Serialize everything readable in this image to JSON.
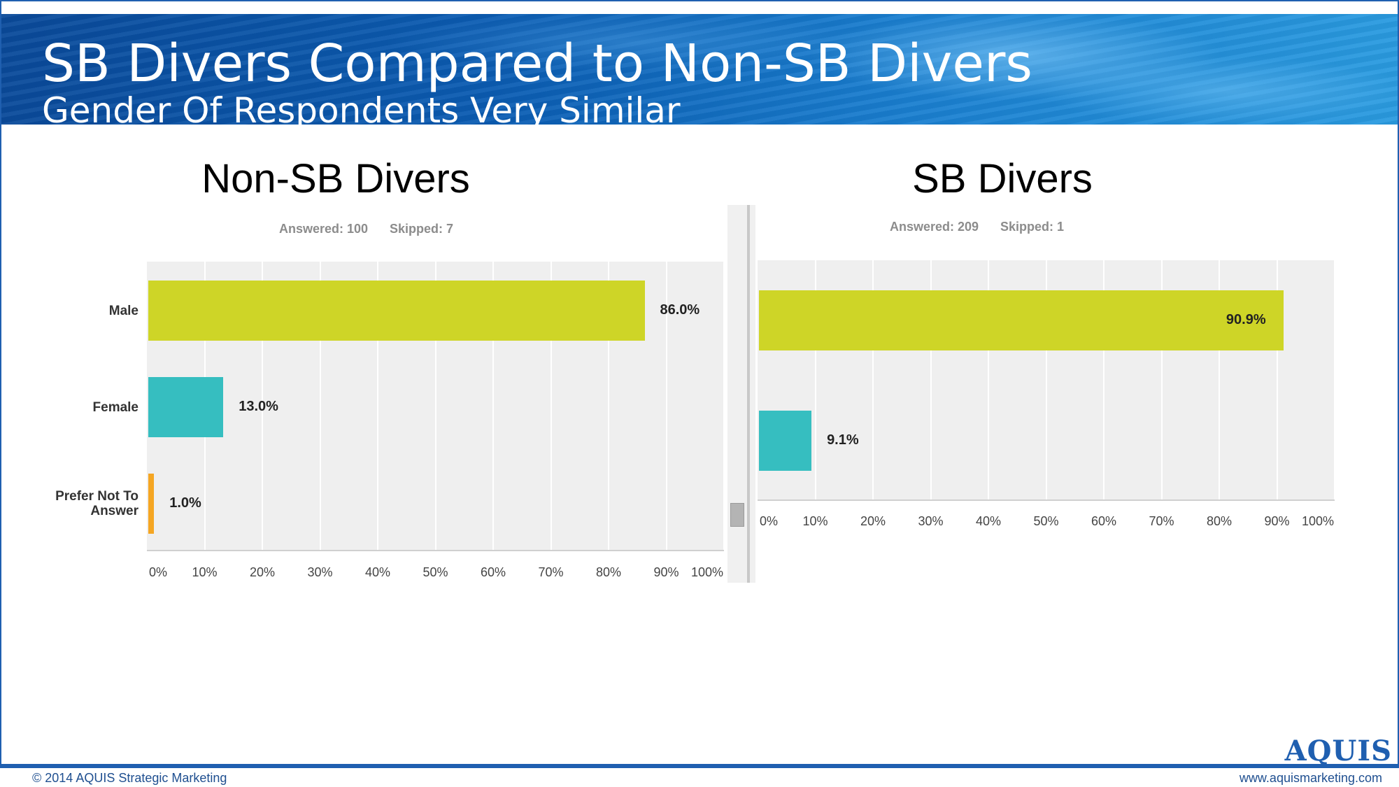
{
  "banner": {
    "title": "SB Divers Compared to Non-SB Divers",
    "subtitle": "Gender Of Respondents Very Similar"
  },
  "chart_data": [
    {
      "type": "bar",
      "orientation": "horizontal",
      "title": "Non-SB Divers",
      "answered": "Answered: 100",
      "skipped": "Skipped: 7",
      "categories": [
        "Male",
        "Female",
        "Prefer Not To Answer"
      ],
      "values": [
        86.0,
        13.0,
        1.0
      ],
      "value_labels": [
        "86.0%",
        "13.0%",
        "1.0%"
      ],
      "colors": [
        "#ced527",
        "#36bec0",
        "#f5a623"
      ],
      "xlim": [
        0,
        100
      ],
      "xticks": [
        "0%",
        "10%",
        "20%",
        "30%",
        "40%",
        "50%",
        "60%",
        "70%",
        "80%",
        "90%",
        "100%"
      ],
      "grid": true
    },
    {
      "type": "bar",
      "orientation": "horizontal",
      "title": "SB Divers",
      "answered": "Answered: 209",
      "skipped": "Skipped: 1",
      "categories": [
        "",
        ""
      ],
      "values": [
        90.9,
        9.1
      ],
      "value_labels": [
        "90.9%",
        "9.1%"
      ],
      "colors": [
        "#ced527",
        "#36bec0"
      ],
      "xlim": [
        0,
        100
      ],
      "xticks": [
        "0%",
        "10%",
        "20%",
        "30%",
        "40%",
        "50%",
        "60%",
        "70%",
        "80%",
        "90%",
        "100%"
      ],
      "grid": true
    }
  ],
  "footer": {
    "logo": "AQUIS",
    "copyright": "© 2014 AQUIS Strategic Marketing",
    "website": "www.aquismarketing.com"
  }
}
